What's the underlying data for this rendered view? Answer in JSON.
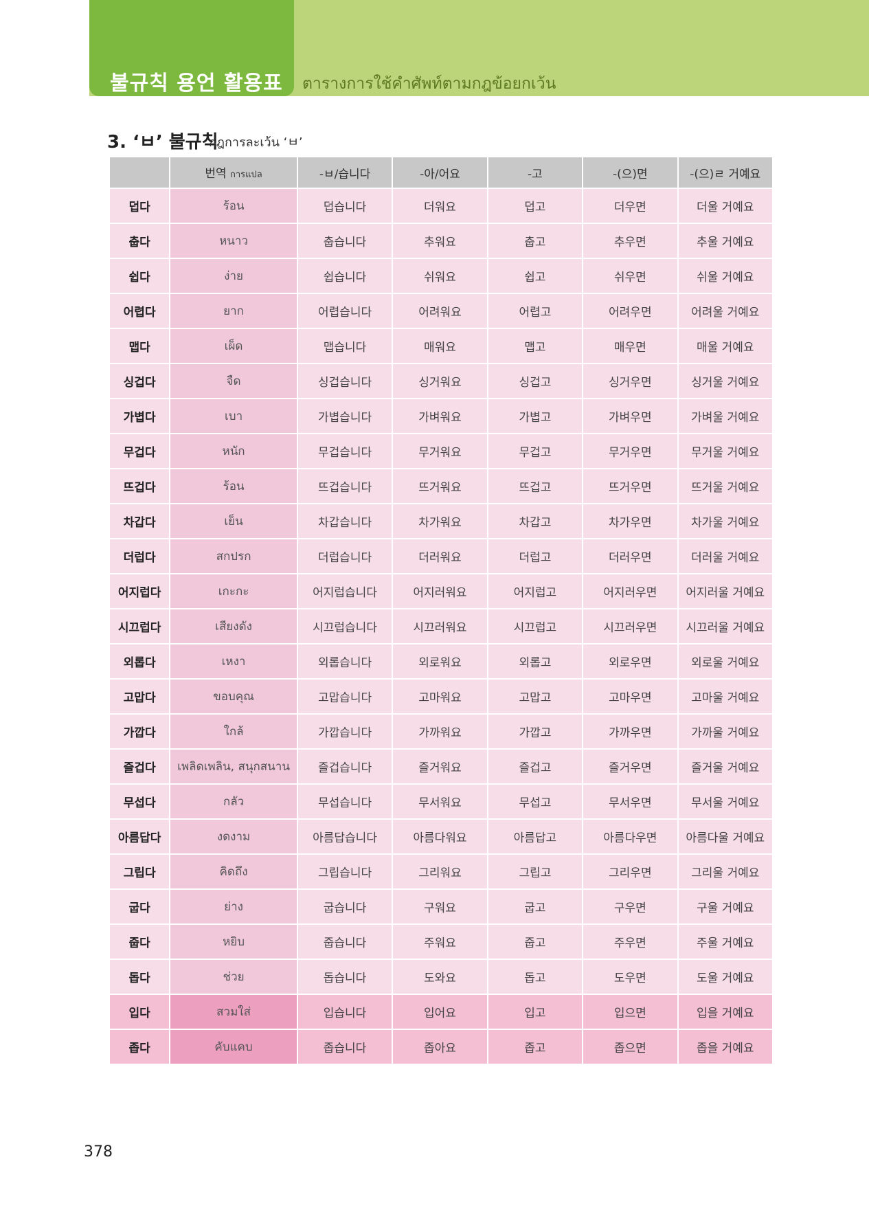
{
  "header": {
    "title": "불규칙 용언 활용표",
    "subtitle": "ตารางการใช้คำศัพท์ตามกฎข้อยกเว้น"
  },
  "section": {
    "heading": "3. ‘ㅂ’ 불규칙",
    "subheading": "กฎการละเว้น ‘ㅂ’"
  },
  "table": {
    "columns": {
      "corner": "",
      "translation": "번역",
      "translation_sub": "การแปล",
      "c1": "-ㅂ/습니다",
      "c2": "-아/어요",
      "c3": "-고",
      "c4": "-(으)면",
      "c5": "-(으)ㄹ 거예요"
    },
    "rows": [
      {
        "word": "덥다",
        "trans": "ร้อน",
        "f1": "덥습니다",
        "f2": "더워요",
        "f3": "덥고",
        "f4": "더우면",
        "f5": "더울 거예요"
      },
      {
        "word": "춥다",
        "trans": "หนาว",
        "f1": "춥습니다",
        "f2": "추워요",
        "f3": "춥고",
        "f4": "추우면",
        "f5": "추울 거예요"
      },
      {
        "word": "쉽다",
        "trans": "ง่าย",
        "f1": "쉽습니다",
        "f2": "쉬워요",
        "f3": "쉽고",
        "f4": "쉬우면",
        "f5": "쉬울 거예요"
      },
      {
        "word": "어렵다",
        "trans": "ยาก",
        "f1": "어렵습니다",
        "f2": "어려워요",
        "f3": "어렵고",
        "f4": "어려우면",
        "f5": "어려울 거예요"
      },
      {
        "word": "맵다",
        "trans": "เผ็ด",
        "f1": "맵습니다",
        "f2": "매워요",
        "f3": "맵고",
        "f4": "매우면",
        "f5": "매울 거예요"
      },
      {
        "word": "싱겁다",
        "trans": "จืด",
        "f1": "싱겁습니다",
        "f2": "싱거워요",
        "f3": "싱겁고",
        "f4": "싱거우면",
        "f5": "싱거울 거예요"
      },
      {
        "word": "가볍다",
        "trans": "เบา",
        "f1": "가볍습니다",
        "f2": "가벼워요",
        "f3": "가볍고",
        "f4": "가벼우면",
        "f5": "가벼울 거예요"
      },
      {
        "word": "무겁다",
        "trans": "หนัก",
        "f1": "무겁습니다",
        "f2": "무거워요",
        "f3": "무겁고",
        "f4": "무거우면",
        "f5": "무거울 거예요"
      },
      {
        "word": "뜨겁다",
        "trans": "ร้อน",
        "f1": "뜨겁습니다",
        "f2": "뜨거워요",
        "f3": "뜨겁고",
        "f4": "뜨거우면",
        "f5": "뜨거울 거예요"
      },
      {
        "word": "차갑다",
        "trans": "เย็น",
        "f1": "차갑습니다",
        "f2": "차가워요",
        "f3": "차갑고",
        "f4": "차가우면",
        "f5": "차가울 거예요"
      },
      {
        "word": "더럽다",
        "trans": "สกปรก",
        "f1": "더럽습니다",
        "f2": "더러워요",
        "f3": "더럽고",
        "f4": "더러우면",
        "f5": "더러울 거예요"
      },
      {
        "word": "어지럽다",
        "trans": "เกะกะ",
        "f1": "어지럽습니다",
        "f2": "어지러워요",
        "f3": "어지럽고",
        "f4": "어지러우면",
        "f5": "어지러울 거예요"
      },
      {
        "word": "시끄럽다",
        "trans": "เสียงดัง",
        "f1": "시끄럽습니다",
        "f2": "시끄러워요",
        "f3": "시끄럽고",
        "f4": "시끄러우면",
        "f5": "시끄러울 거예요"
      },
      {
        "word": "외롭다",
        "trans": "เหงา",
        "f1": "외롭습니다",
        "f2": "외로워요",
        "f3": "외롭고",
        "f4": "외로우면",
        "f5": "외로울 거예요"
      },
      {
        "word": "고맙다",
        "trans": "ขอบคุณ",
        "f1": "고맙습니다",
        "f2": "고마워요",
        "f3": "고맙고",
        "f4": "고마우면",
        "f5": "고마울 거예요"
      },
      {
        "word": "가깝다",
        "trans": "ใกล้",
        "f1": "가깝습니다",
        "f2": "가까워요",
        "f3": "가깝고",
        "f4": "가까우면",
        "f5": "가까울 거예요"
      },
      {
        "word": "즐겁다",
        "trans": "เพลิดเพลิน, สนุกสนาน",
        "f1": "즐겁습니다",
        "f2": "즐거워요",
        "f3": "즐겁고",
        "f4": "즐거우면",
        "f5": "즐거울 거예요"
      },
      {
        "word": "무섭다",
        "trans": "กลัว",
        "f1": "무섭습니다",
        "f2": "무서워요",
        "f3": "무섭고",
        "f4": "무서우면",
        "f5": "무서울 거예요"
      },
      {
        "word": "아름답다",
        "trans": "งดงาม",
        "f1": "아름답습니다",
        "f2": "아름다워요",
        "f3": "아름답고",
        "f4": "아름다우면",
        "f5": "아름다울 거예요"
      },
      {
        "word": "그립다",
        "trans": "คิดถึง",
        "f1": "그립습니다",
        "f2": "그리워요",
        "f3": "그립고",
        "f4": "그리우면",
        "f5": "그리울 거예요"
      },
      {
        "word": "굽다",
        "trans": "ย่าง",
        "f1": "굽습니다",
        "f2": "구워요",
        "f3": "굽고",
        "f4": "구우면",
        "f5": "구울 거예요"
      },
      {
        "word": "줍다",
        "trans": "หยิบ",
        "f1": "줍습니다",
        "f2": "주워요",
        "f3": "줍고",
        "f4": "주우면",
        "f5": "주울 거예요"
      },
      {
        "word": "돕다",
        "trans": "ช่วย",
        "f1": "돕습니다",
        "f2": "도와요",
        "f3": "돕고",
        "f4": "도우면",
        "f5": "도울 거예요"
      },
      {
        "word": "입다",
        "trans": "สวมใส่",
        "f1": "입습니다",
        "f2": "입어요",
        "f3": "입고",
        "f4": "입으면",
        "f5": "입을 거예요",
        "highlight": true
      },
      {
        "word": "좁다",
        "trans": "คับแคบ",
        "f1": "좁습니다",
        "f2": "좁아요",
        "f3": "좁고",
        "f4": "좁으면",
        "f5": "좁을 거예요",
        "highlight": true
      }
    ]
  },
  "footer": {
    "page_number": "378"
  }
}
